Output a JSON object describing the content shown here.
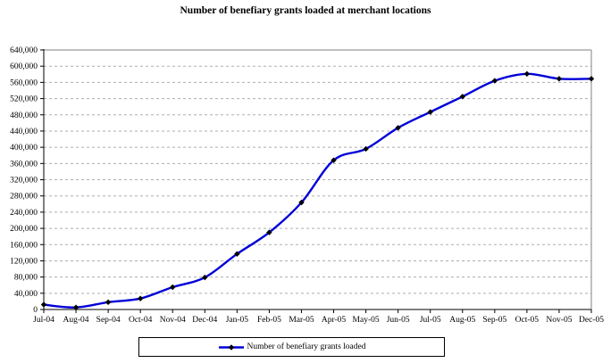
{
  "chart": {
    "title": "Number of benefiary grants loaded at merchant locations",
    "legend": {
      "label": "Number of benefiary grants loaded"
    }
  },
  "chart_data": {
    "type": "line",
    "title": "Number of benefiary grants loaded at merchant locations",
    "categories": [
      "Jul-04",
      "Aug-04",
      "Sep-04",
      "Oct-04",
      "Nov-04",
      "Dec-04",
      "Jan-05",
      "Feb-05",
      "Mar-05",
      "Apr-05",
      "May-05",
      "Jun-05",
      "Jul-05",
      "Aug-05",
      "Sep-05",
      "Oct-05",
      "Nov-05",
      "Dec-05"
    ],
    "series": [
      {
        "name": "Number of benefiary grants loaded",
        "values": [
          12000,
          5000,
          18000,
          27000,
          55000,
          79000,
          137000,
          190000,
          264000,
          368000,
          396000,
          448000,
          487000,
          525000,
          564000,
          581000,
          569000,
          569000
        ]
      }
    ],
    "xlabel": "",
    "ylabel": "",
    "ylim": [
      0,
      640000
    ],
    "ytick_step": 40000,
    "ytick_format": "comma",
    "grid": "horizontal-dashed",
    "legend_position": "bottom-center-boxed",
    "smooth": true,
    "marker": "diamond",
    "colors": {
      "line": "#0000D8",
      "marker": "#000000",
      "gridline": "#ADADAD",
      "plot_border": "#808080",
      "axis": "#000000",
      "background": "#FFFFFF"
    }
  }
}
